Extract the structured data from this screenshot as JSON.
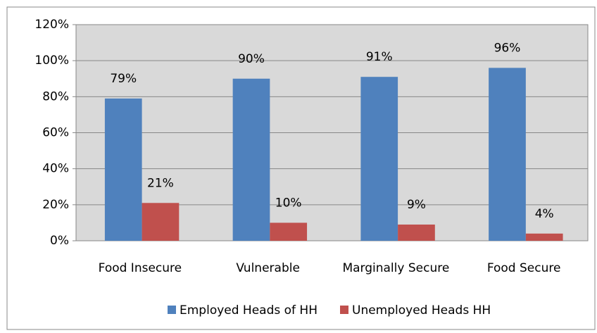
{
  "chart_data": {
    "type": "bar",
    "categories": [
      "Food Insecure",
      "Vulnerable",
      "Marginally Secure",
      "Food Secure"
    ],
    "series": [
      {
        "name": "Employed Heads of HH",
        "color": "#4f81bd",
        "values": [
          79,
          90,
          91,
          96
        ],
        "value_labels": [
          "79%",
          "90%",
          "91%",
          "96%"
        ]
      },
      {
        "name": "Unemployed Heads HH",
        "color": "#c0504d",
        "values": [
          21,
          10,
          9,
          4
        ],
        "value_labels": [
          "21%",
          "10%",
          "9%",
          "4%"
        ]
      }
    ],
    "ylim": [
      0,
      120
    ],
    "yticks": [
      {
        "value": 0,
        "label": "0%"
      },
      {
        "value": 20,
        "label": "20%"
      },
      {
        "value": 40,
        "label": "40%"
      },
      {
        "value": 60,
        "label": "60%"
      },
      {
        "value": 80,
        "label": "80%"
      },
      {
        "value": 100,
        "label": "100%"
      },
      {
        "value": 120,
        "label": "120%"
      }
    ],
    "grid": true,
    "legend": "bottom"
  }
}
